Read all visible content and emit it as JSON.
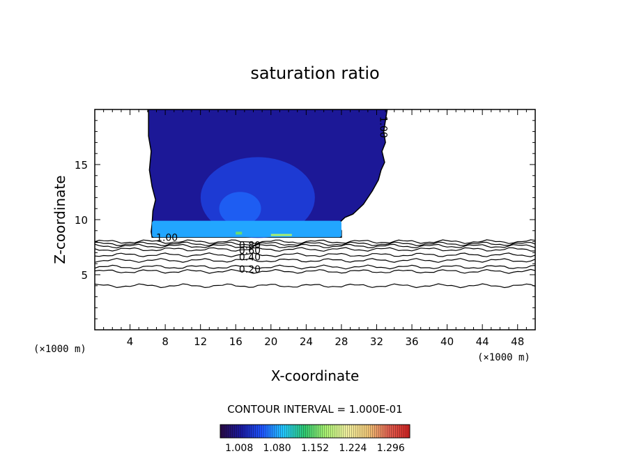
{
  "chart_data": {
    "type": "contour",
    "title": "saturation ratio",
    "xlabel": "X-coordinate",
    "ylabel": "Z-coordinate",
    "x_unit": "(×1000 m)",
    "y_unit": "(×1000 m)",
    "xlim": [
      0,
      50
    ],
    "ylim": [
      0,
      20
    ],
    "x_ticks": [
      4,
      8,
      12,
      16,
      20,
      24,
      28,
      32,
      36,
      40,
      44,
      48
    ],
    "y_ticks": [
      5,
      10,
      15
    ],
    "contour_interval_text": "CONTOUR INTERVAL = 1.000E-01",
    "contour_labels": [
      {
        "text": "1.00",
        "x": 8.2,
        "z": 8.4
      },
      {
        "text": "0.80",
        "x": 17.6,
        "z": 7.7
      },
      {
        "text": "0.60",
        "x": 17.6,
        "z": 7.2
      },
      {
        "text": "0.40",
        "x": 17.6,
        "z": 6.6
      },
      {
        "text": "0.20",
        "x": 17.6,
        "z": 5.5
      },
      {
        "text": "1.00",
        "x": 32.8,
        "z": 18.4,
        "rotated": true
      }
    ],
    "contour_levels": [
      {
        "level": 0.9,
        "z": 8.0
      },
      {
        "level": 0.8,
        "z": 7.8
      },
      {
        "level": 0.7,
        "z": 7.6
      },
      {
        "level": 0.6,
        "z": 7.3
      },
      {
        "level": 0.5,
        "z": 6.8
      },
      {
        "level": 0.4,
        "z": 6.3
      },
      {
        "level": 0.3,
        "z": 5.7
      },
      {
        "level": 0.2,
        "z": 5.3
      },
      {
        "level": 0.1,
        "z": 4.0
      }
    ],
    "supersaturated_region": {
      "base_z": 8.4,
      "top_z": 20,
      "x_range_at_base": [
        6.5,
        28.0
      ],
      "fill_value": 1.008,
      "inner_value": 1.044,
      "core_value": 1.08,
      "base_layer_value": 1.08,
      "spot_value": 1.152
    },
    "colorbar": {
      "tick_labels": [
        "1.008",
        "1.080",
        "1.152",
        "1.224",
        "1.296"
      ],
      "min": 0.972,
      "max": 1.332,
      "colors": [
        "#2a0a45",
        "#1a1aa0",
        "#1f55ff",
        "#23c8ff",
        "#2ec870",
        "#a8f070",
        "#f0f0a0",
        "#f0c878",
        "#e06050",
        "#d02020"
      ]
    },
    "grid": false
  }
}
